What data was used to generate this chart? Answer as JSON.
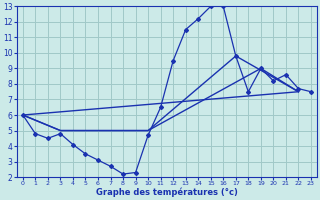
{
  "xlabel": "Graphe des températures (°c)",
  "xlim": [
    -0.5,
    23.5
  ],
  "ylim": [
    2,
    13
  ],
  "yticks": [
    2,
    3,
    4,
    5,
    6,
    7,
    8,
    9,
    10,
    11,
    12,
    13
  ],
  "xticks": [
    0,
    1,
    2,
    3,
    4,
    5,
    6,
    7,
    8,
    9,
    10,
    11,
    12,
    13,
    14,
    15,
    16,
    17,
    18,
    19,
    20,
    21,
    22,
    23
  ],
  "bg_color": "#cceae8",
  "grid_color": "#a0c8c8",
  "line_color": "#1a32b0",
  "series1_x": [
    0,
    1,
    2,
    3,
    4,
    5,
    6,
    7,
    8,
    9,
    10,
    11,
    12,
    13,
    14,
    15,
    16,
    17,
    18,
    19,
    20,
    21,
    22,
    23
  ],
  "series1_y": [
    6.0,
    4.8,
    4.5,
    4.8,
    4.1,
    3.5,
    3.1,
    2.7,
    2.2,
    2.3,
    4.7,
    6.5,
    9.5,
    11.5,
    12.2,
    13.0,
    13.0,
    9.8,
    7.5,
    9.0,
    8.2,
    8.6,
    7.7,
    7.5
  ],
  "series2_x": [
    0,
    22
  ],
  "series2_y": [
    6.0,
    7.5
  ],
  "series3_x": [
    0,
    3,
    10,
    19,
    22
  ],
  "series3_y": [
    6.0,
    5.0,
    5.0,
    9.0,
    7.5
  ],
  "series4_x": [
    0,
    3,
    10,
    17,
    22
  ],
  "series4_y": [
    6.0,
    5.0,
    5.0,
    9.8,
    7.5
  ]
}
